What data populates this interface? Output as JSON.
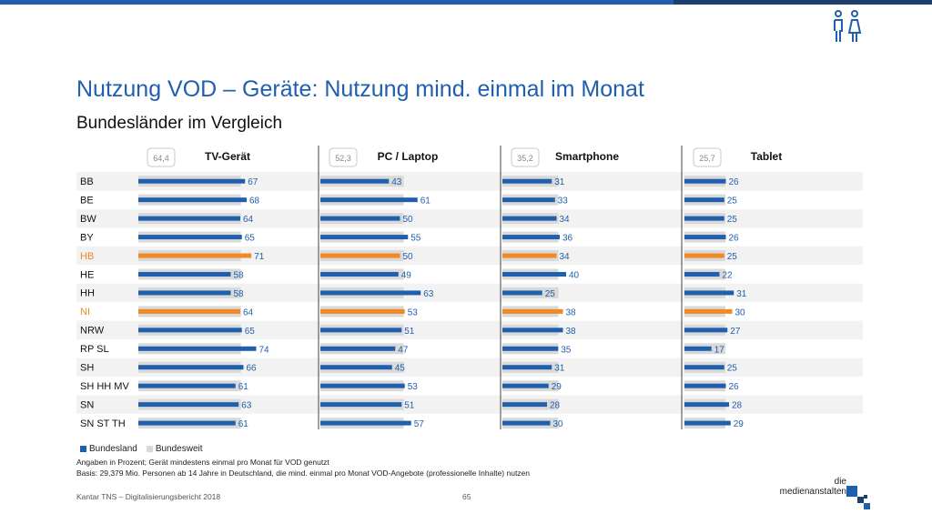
{
  "header": {
    "title": "Nutzung VOD – Geräte: Nutzung mind. einmal im Monat",
    "subtitle": "Bundesländer im Vergleich"
  },
  "colors": {
    "bundesland": "#1f5fad",
    "bundesweit": "#d9d9d9",
    "highlight": "#f08a24",
    "topbar": "#1f5fad"
  },
  "chart_data": {
    "type": "bar",
    "orientation": "horizontal",
    "categories": [
      "BB",
      "BE",
      "BW",
      "BY",
      "HB",
      "HE",
      "HH",
      "NI",
      "NRW",
      "RP SL",
      "SH",
      "SH HH MV",
      "SN",
      "SN ST TH"
    ],
    "highlighted_categories": [
      "HB",
      "NI"
    ],
    "panels": [
      {
        "name": "TV-Gerät",
        "bundesweit": "64,4",
        "bundesweit_value": 64.4,
        "values": [
          67,
          68,
          64,
          65,
          71,
          58,
          58,
          64,
          65,
          74,
          66,
          61,
          63,
          61
        ]
      },
      {
        "name": "PC / Laptop",
        "bundesweit": "52,3",
        "bundesweit_value": 52.3,
        "values": [
          43,
          61,
          50,
          55,
          50,
          49,
          63,
          53,
          51,
          47,
          45,
          53,
          51,
          57
        ]
      },
      {
        "name": "Smartphone",
        "bundesweit": "35,2",
        "bundesweit_value": 35.2,
        "values": [
          31,
          33,
          34,
          36,
          34,
          40,
          25,
          38,
          38,
          35,
          31,
          29,
          28,
          30
        ]
      },
      {
        "name": "Tablet",
        "bundesweit": "25,7",
        "bundesweit_value": 25.7,
        "values": [
          26,
          25,
          25,
          26,
          25,
          22,
          31,
          30,
          27,
          17,
          25,
          26,
          28,
          29
        ]
      }
    ],
    "series": [
      {
        "name": "Bundesland"
      },
      {
        "name": "Bundesweit"
      }
    ]
  },
  "notes": {
    "line1": "Angaben in Prozent; Gerät mindestens einmal pro Monat für VOD genutzt",
    "line2": "Basis: 29,379 Mio. Personen ab 14 Jahre in Deutschland, die mind. einmal pro Monat VOD-Angebote (professionelle Inhalte) nutzen"
  },
  "footer": {
    "source": "Kantar TNS – Digitalisierungsbericht 2018",
    "page": "65",
    "logo_line1": "die",
    "logo_line2": "medienanstalten"
  }
}
